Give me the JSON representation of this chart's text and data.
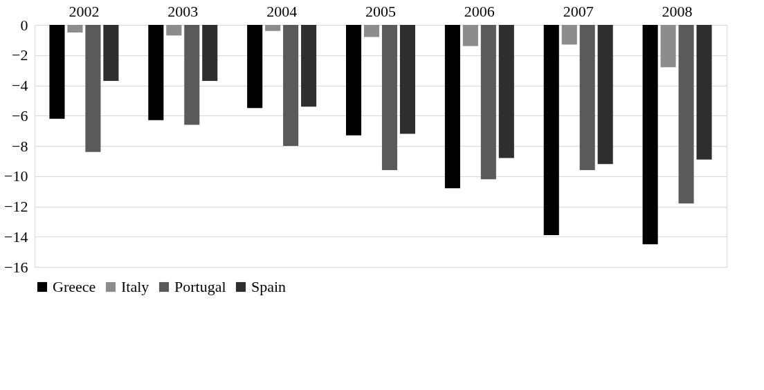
{
  "chart_data": {
    "type": "bar",
    "categories": [
      "2002",
      "2003",
      "2004",
      "2005",
      "2006",
      "2007",
      "2008"
    ],
    "series": [
      {
        "name": "Greece",
        "color": "#000000",
        "values": [
          -6.2,
          -6.3,
          -5.5,
          -7.3,
          -10.8,
          -13.9,
          -14.5
        ]
      },
      {
        "name": "Italy",
        "color": "#8c8c8c",
        "values": [
          -0.5,
          -0.7,
          -0.4,
          -0.8,
          -1.4,
          -1.3,
          -2.8
        ]
      },
      {
        "name": "Portugal",
        "color": "#5a5a5a",
        "values": [
          -8.4,
          -6.6,
          -8.0,
          -9.6,
          -10.2,
          -9.6,
          -11.8
        ]
      },
      {
        "name": "Spain",
        "color": "#2e2e2e",
        "values": [
          -3.7,
          -3.7,
          -5.4,
          -7.2,
          -8.8,
          -9.2,
          -8.9
        ]
      }
    ],
    "ylim": [
      -16,
      0
    ],
    "yticks": [
      -16,
      -14,
      -12,
      -10,
      -8,
      -6,
      -4,
      -2,
      0
    ],
    "grid": "y",
    "legend": "bottom"
  }
}
